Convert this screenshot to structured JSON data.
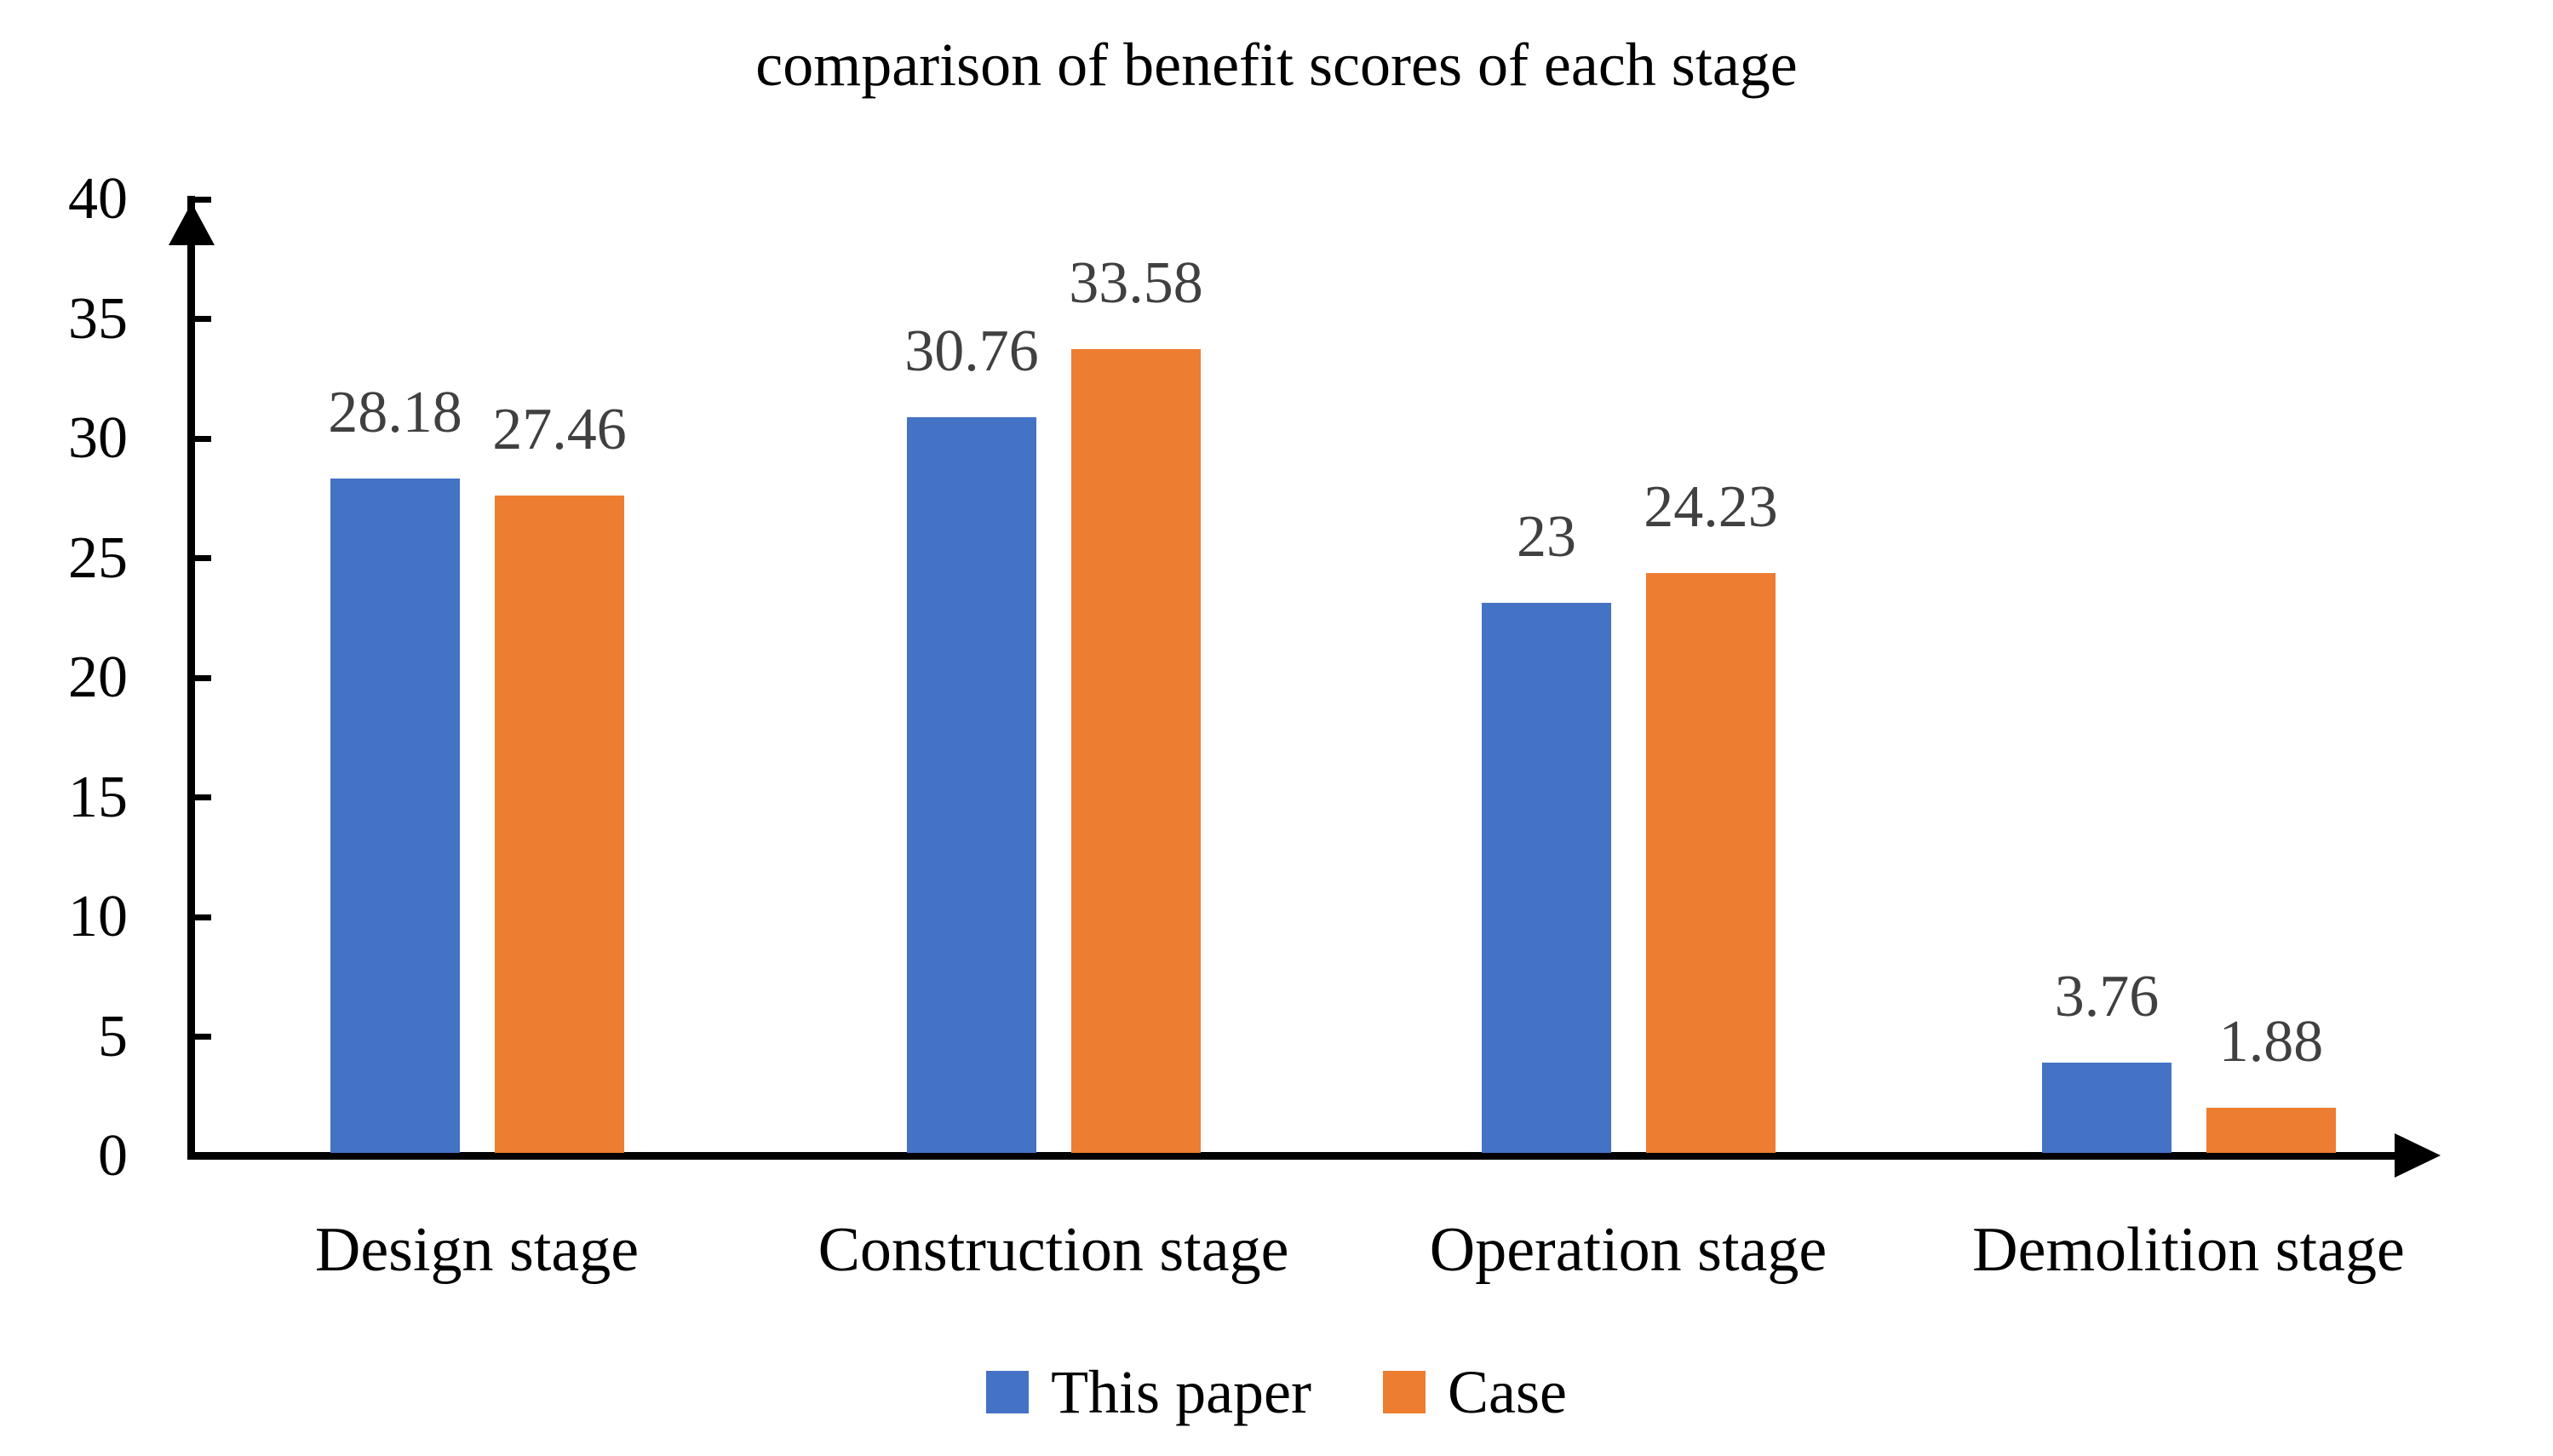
{
  "title": "comparison of benefit scores of each stage",
  "colors": {
    "series_this_paper": "#4472C4",
    "series_case": "#ED7D31",
    "axis": "#000000",
    "data_label": "#404040",
    "text": "#000000",
    "background": "#FFFFFF"
  },
  "y_axis": {
    "min": 0,
    "max": 40,
    "step": 5,
    "tick_labels": [
      "0",
      "5",
      "10",
      "15",
      "20",
      "25",
      "30",
      "35",
      "40"
    ]
  },
  "legend": {
    "items": [
      {
        "label": "This paper",
        "color": "#4472C4"
      },
      {
        "label": "Case",
        "color": "#ED7D31"
      }
    ]
  },
  "chart_data": {
    "type": "bar",
    "title": "comparison of benefit scores of each stage",
    "categories": [
      "Design stage",
      "Construction stage",
      "Operation stage",
      "Demolition stage"
    ],
    "series": [
      {
        "name": "This paper",
        "color": "#4472C4",
        "values": [
          28.18,
          30.76,
          23,
          3.76
        ],
        "labels": [
          "28.18",
          "30.76",
          "23",
          "3.76"
        ]
      },
      {
        "name": "Case",
        "color": "#ED7D31",
        "values": [
          27.46,
          33.58,
          24.23,
          1.88
        ],
        "labels": [
          "27.46",
          "33.58",
          "24.23",
          "1.88"
        ]
      }
    ],
    "xlabel": "",
    "ylabel": "",
    "ylim": [
      0,
      40
    ],
    "grid": false,
    "legend_position": "bottom",
    "data_labels": true
  }
}
